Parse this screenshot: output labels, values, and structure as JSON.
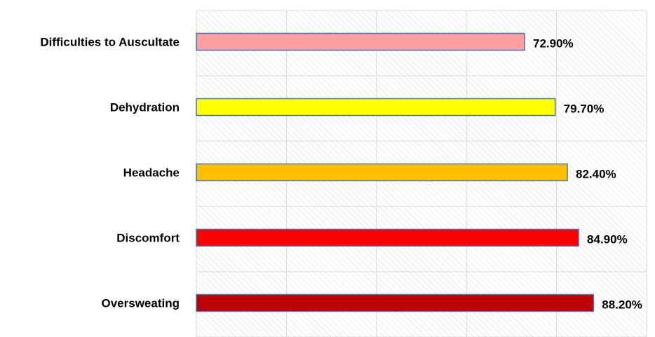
{
  "chart_data": {
    "type": "bar",
    "orientation": "horizontal",
    "categories": [
      "Difficulties to Auscultate",
      "Dehydration",
      "Headache",
      "Discomfort",
      "Oversweating"
    ],
    "values": [
      72.9,
      79.7,
      82.4,
      84.9,
      88.2
    ],
    "value_labels": [
      "72.90%",
      "79.70%",
      "82.40%",
      "84.90%",
      "88.20%"
    ],
    "colors": [
      "#FF9E9E",
      "#FFFF00",
      "#FFBF00",
      "#FF0000",
      "#C00000"
    ],
    "bar_border_color": "#4472C4",
    "xlim": [
      0,
      100
    ],
    "x_grid_step": 20,
    "grid": true,
    "background": "diagonal-hatch",
    "title": "",
    "xlabel": "",
    "ylabel": ""
  }
}
